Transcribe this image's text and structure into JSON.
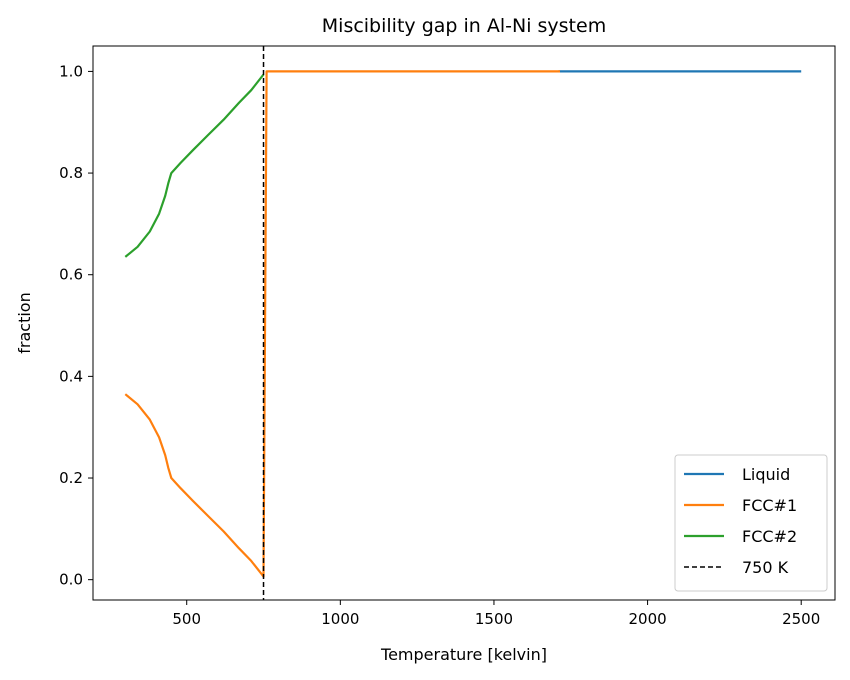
{
  "chart_data": {
    "type": "line",
    "title": "Miscibility gap in Al-Ni system",
    "xlabel": "Temperature [kelvin]",
    "ylabel": "fraction",
    "xlim": [
      195,
      2610
    ],
    "ylim": [
      -0.04,
      1.05
    ],
    "xticks": [
      500,
      1000,
      1500,
      2000,
      2500
    ],
    "xtick_labels": [
      "500",
      "1000",
      "1500",
      "2000",
      "2500"
    ],
    "yticks": [
      0.0,
      0.2,
      0.4,
      0.6,
      0.8,
      1.0
    ],
    "ytick_labels": [
      "0.0",
      "0.2",
      "0.4",
      "0.6",
      "0.8",
      "1.0"
    ],
    "grid": false,
    "legend_position": "bottom-right",
    "series": [
      {
        "name": "Liquid",
        "color": "#1f77b4",
        "style": "solid",
        "points": [
          [
            1710,
            1.0
          ],
          [
            2500,
            1.0
          ]
        ]
      },
      {
        "name": "FCC#1",
        "color": "#ff7f0e",
        "style": "solid",
        "points": [
          [
            300,
            0.365
          ],
          [
            340,
            0.345
          ],
          [
            380,
            0.315
          ],
          [
            410,
            0.28
          ],
          [
            430,
            0.245
          ],
          [
            440,
            0.22
          ],
          [
            450,
            0.2
          ],
          [
            480,
            0.18
          ],
          [
            520,
            0.155
          ],
          [
            570,
            0.125
          ],
          [
            620,
            0.095
          ],
          [
            670,
            0.062
          ],
          [
            710,
            0.037
          ],
          [
            745,
            0.01
          ],
          [
            750,
            0.006
          ],
          [
            760,
            1.0
          ],
          [
            800,
            1.0
          ],
          [
            1000,
            1.0
          ],
          [
            1500,
            1.0
          ],
          [
            1715,
            1.0
          ]
        ]
      },
      {
        "name": "FCC#2",
        "color": "#2ca02c",
        "style": "solid",
        "points": [
          [
            300,
            0.635
          ],
          [
            340,
            0.655
          ],
          [
            380,
            0.685
          ],
          [
            410,
            0.72
          ],
          [
            430,
            0.755
          ],
          [
            440,
            0.78
          ],
          [
            450,
            0.8
          ],
          [
            480,
            0.82
          ],
          [
            520,
            0.845
          ],
          [
            570,
            0.875
          ],
          [
            620,
            0.905
          ],
          [
            670,
            0.938
          ],
          [
            710,
            0.963
          ],
          [
            750,
            0.994
          ]
        ]
      },
      {
        "name": "750 K",
        "color": "#000000",
        "style": "dashed",
        "vline_x": 750
      }
    ]
  }
}
